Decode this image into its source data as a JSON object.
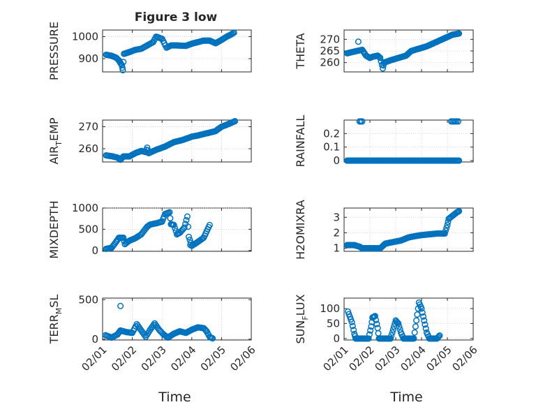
{
  "figure": {
    "title": "Figure 3 low",
    "marker_color": "#0072BD"
  },
  "chart_data": [
    {
      "type": "scatter",
      "ylabel": "PRESSURE",
      "xlim": [
        0,
        5
      ],
      "ylim": [
        840,
        1030
      ],
      "yticks": [
        900,
        1000
      ],
      "ytick_labels": [
        "900",
        "1000"
      ],
      "xtick_labels": [],
      "keypoints": [
        [
          0.12,
          918
        ],
        [
          0.3,
          913
        ],
        [
          0.45,
          905
        ],
        [
          0.55,
          892
        ],
        [
          0.6,
          880
        ],
        [
          0.65,
          870
        ],
        [
          0.68,
          848
        ],
        [
          0.72,
          922
        ],
        [
          0.9,
          930
        ],
        [
          1.1,
          940
        ],
        [
          1.3,
          945
        ],
        [
          1.5,
          960
        ],
        [
          1.7,
          975
        ],
        [
          1.8,
          1000
        ],
        [
          2.0,
          990
        ],
        [
          2.15,
          950
        ],
        [
          2.3,
          960
        ],
        [
          2.5,
          960
        ],
        [
          2.8,
          958
        ],
        [
          3.0,
          968
        ],
        [
          3.2,
          975
        ],
        [
          3.4,
          982
        ],
        [
          3.6,
          982
        ],
        [
          3.8,
          970
        ],
        [
          4.0,
          985
        ],
        [
          4.15,
          998
        ],
        [
          4.25,
          1005
        ],
        [
          4.35,
          1012
        ],
        [
          4.42,
          1018
        ]
      ],
      "outliers": []
    },
    {
      "type": "scatter",
      "ylabel": "THETA",
      "xlim": [
        0,
        5
      ],
      "ylim": [
        256,
        274
      ],
      "yticks": [
        260,
        265,
        270
      ],
      "ytick_labels": [
        "260",
        "265",
        "270"
      ],
      "xtick_labels": [],
      "keypoints": [
        [
          0.12,
          264
        ],
        [
          0.3,
          264.5
        ],
        [
          0.5,
          265
        ],
        [
          0.7,
          265.5
        ],
        [
          0.85,
          263
        ],
        [
          1.0,
          262
        ],
        [
          1.1,
          262.5
        ],
        [
          1.3,
          263
        ],
        [
          1.4,
          262
        ],
        [
          1.5,
          257.5
        ],
        [
          1.55,
          260
        ],
        [
          1.8,
          261
        ],
        [
          2.1,
          262
        ],
        [
          2.4,
          263
        ],
        [
          2.6,
          265
        ],
        [
          2.9,
          266
        ],
        [
          3.2,
          267
        ],
        [
          3.5,
          268.5
        ],
        [
          3.8,
          270
        ],
        [
          4.0,
          271
        ],
        [
          4.2,
          272
        ],
        [
          4.45,
          272.5
        ]
      ],
      "outliers": [
        [
          0.55,
          269
        ]
      ]
    },
    {
      "type": "scatter",
      "ylabel": "AIR_T EMP",
      "xlim": [
        0,
        5
      ],
      "ylim": [
        254,
        273
      ],
      "yticks": [
        260,
        270
      ],
      "ytick_labels": [
        "260",
        "270"
      ],
      "xtick_labels": [],
      "keypoints": [
        [
          0.12,
          257
        ],
        [
          0.35,
          256.5
        ],
        [
          0.5,
          256
        ],
        [
          0.6,
          255
        ],
        [
          0.7,
          256.5
        ],
        [
          0.9,
          256.5
        ],
        [
          1.1,
          258
        ],
        [
          1.3,
          259
        ],
        [
          1.45,
          258.5
        ],
        [
          1.5,
          260.5
        ],
        [
          1.55,
          258
        ],
        [
          1.8,
          259.5
        ],
        [
          2.1,
          261
        ],
        [
          2.4,
          263
        ],
        [
          2.7,
          264
        ],
        [
          3.0,
          265.5
        ],
        [
          3.2,
          266
        ],
        [
          3.5,
          267
        ],
        [
          3.8,
          268
        ],
        [
          4.0,
          270
        ],
        [
          4.2,
          271
        ],
        [
          4.45,
          272.5
        ]
      ],
      "outliers": []
    },
    {
      "type": "scatter",
      "ylabel": "RAINFALL",
      "xlim": [
        0,
        5
      ],
      "ylim": [
        -0.01,
        0.3
      ],
      "yticks": [
        0,
        0.1,
        0.2
      ],
      "ytick_labels": [
        "0",
        "0.1",
        "0.2"
      ],
      "xtick_labels": [],
      "keypoints": [
        [
          0.12,
          0
        ],
        [
          4.45,
          0
        ]
      ],
      "outliers": [
        [
          0.6,
          0.29
        ],
        [
          0.65,
          0.29
        ],
        [
          0.7,
          0.29
        ],
        [
          4.15,
          0.29
        ],
        [
          4.2,
          0.29
        ],
        [
          4.25,
          0.29
        ],
        [
          4.3,
          0.29
        ],
        [
          4.35,
          0.29
        ],
        [
          4.42,
          0.29
        ]
      ]
    },
    {
      "type": "scatter",
      "ylabel": "MIXDEPTH",
      "xlim": [
        0,
        5
      ],
      "ylim": [
        -20,
        1000
      ],
      "yticks": [
        0,
        500,
        1000
      ],
      "ytick_labels": [
        "0",
        "500",
        "1000"
      ],
      "xtick_labels": [],
      "keypoints": [
        [
          0.12,
          40
        ],
        [
          0.3,
          60
        ],
        [
          0.45,
          200
        ],
        [
          0.55,
          300
        ],
        [
          0.7,
          300
        ],
        [
          0.75,
          150
        ],
        [
          0.9,
          230
        ],
        [
          1.1,
          290
        ],
        [
          1.3,
          380
        ],
        [
          1.5,
          560
        ],
        [
          1.6,
          610
        ],
        [
          1.8,
          640
        ],
        [
          2.0,
          680
        ],
        [
          2.1,
          860
        ],
        [
          2.25,
          900
        ],
        [
          2.3,
          620
        ],
        [
          2.4,
          600
        ],
        [
          2.5,
          380
        ],
        [
          2.6,
          420
        ],
        [
          2.75,
          540
        ],
        [
          2.85,
          800
        ],
        [
          2.9,
          320
        ],
        [
          3.0,
          110
        ],
        [
          3.2,
          200
        ],
        [
          3.4,
          300
        ],
        [
          3.5,
          450
        ],
        [
          3.6,
          600
        ]
      ],
      "outliers": [
        [
          2.95,
          130
        ]
      ]
    },
    {
      "type": "scatter",
      "ylabel": "H2OMIXRA",
      "xlim": [
        0,
        5
      ],
      "ylim": [
        0.8,
        3.6
      ],
      "yticks": [
        1,
        2,
        3
      ],
      "ytick_labels": [
        "1",
        "2",
        "3"
      ],
      "xtick_labels": [],
      "keypoints": [
        [
          0.12,
          1.2
        ],
        [
          0.4,
          1.2
        ],
        [
          0.6,
          1.1
        ],
        [
          0.7,
          1.0
        ],
        [
          0.9,
          1.0
        ],
        [
          1.2,
          1.0
        ],
        [
          1.4,
          1.0
        ],
        [
          1.6,
          1.3
        ],
        [
          1.9,
          1.4
        ],
        [
          2.2,
          1.5
        ],
        [
          2.5,
          1.7
        ],
        [
          2.8,
          1.8
        ],
        [
          3.0,
          1.85
        ],
        [
          3.3,
          1.9
        ],
        [
          3.6,
          1.95
        ],
        [
          3.9,
          1.95
        ],
        [
          4.0,
          2.5
        ],
        [
          4.05,
          2.9
        ],
        [
          4.2,
          3.1
        ],
        [
          4.35,
          3.3
        ],
        [
          4.45,
          3.4
        ]
      ],
      "outliers": []
    },
    {
      "type": "scatter",
      "ylabel": "TERR_M SL",
      "xlim": [
        0,
        5
      ],
      "ylim": [
        -10,
        520
      ],
      "yticks": [
        0,
        500
      ],
      "ytick_labels": [
        "0",
        "500"
      ],
      "xtick_labels": [
        "02/01",
        "02/02",
        "02/03",
        "02/04",
        "02/05",
        "02/06"
      ],
      "xlabel": "Time",
      "keypoints": [
        [
          0.1,
          50
        ],
        [
          0.3,
          20
        ],
        [
          0.5,
          60
        ],
        [
          0.6,
          110
        ],
        [
          0.8,
          90
        ],
        [
          1.0,
          80
        ],
        [
          1.15,
          190
        ],
        [
          1.3,
          110
        ],
        [
          1.45,
          30
        ],
        [
          1.6,
          120
        ],
        [
          1.75,
          200
        ],
        [
          1.9,
          120
        ],
        [
          2.05,
          60
        ],
        [
          2.2,
          20
        ],
        [
          2.4,
          70
        ],
        [
          2.6,
          100
        ],
        [
          2.8,
          80
        ],
        [
          3.0,
          120
        ],
        [
          3.2,
          150
        ],
        [
          3.4,
          140
        ],
        [
          3.5,
          100
        ],
        [
          3.6,
          30
        ],
        [
          3.7,
          10
        ]
      ],
      "outliers": [
        [
          0.6,
          420
        ]
      ]
    },
    {
      "type": "scatter",
      "ylabel": "SUN_F LUX",
      "xlim": [
        0,
        5
      ],
      "ylim": [
        -5,
        135
      ],
      "yticks": [
        0,
        50,
        100
      ],
      "ytick_labels": [
        "0",
        "50",
        "100"
      ],
      "xtick_labels": [
        "02/01",
        "02/02",
        "02/03",
        "02/04",
        "02/05",
        "02/06"
      ],
      "xlabel": "Time",
      "keypoints": [
        [
          0.15,
          90
        ],
        [
          0.3,
          55
        ],
        [
          0.4,
          15
        ],
        [
          0.45,
          0
        ],
        [
          0.95,
          0
        ],
        [
          1.05,
          40
        ],
        [
          1.1,
          70
        ],
        [
          1.2,
          75
        ],
        [
          1.3,
          35
        ],
        [
          1.35,
          0
        ],
        [
          1.8,
          0
        ],
        [
          1.9,
          30
        ],
        [
          2.0,
          60
        ],
        [
          2.1,
          50
        ],
        [
          2.2,
          20
        ],
        [
          2.3,
          0
        ],
        [
          2.7,
          0
        ],
        [
          2.8,
          60
        ],
        [
          2.9,
          120
        ],
        [
          3.0,
          100
        ],
        [
          3.1,
          60
        ],
        [
          3.2,
          20
        ],
        [
          3.3,
          0
        ],
        [
          3.6,
          0
        ],
        [
          3.7,
          10
        ]
      ],
      "outliers": []
    }
  ]
}
